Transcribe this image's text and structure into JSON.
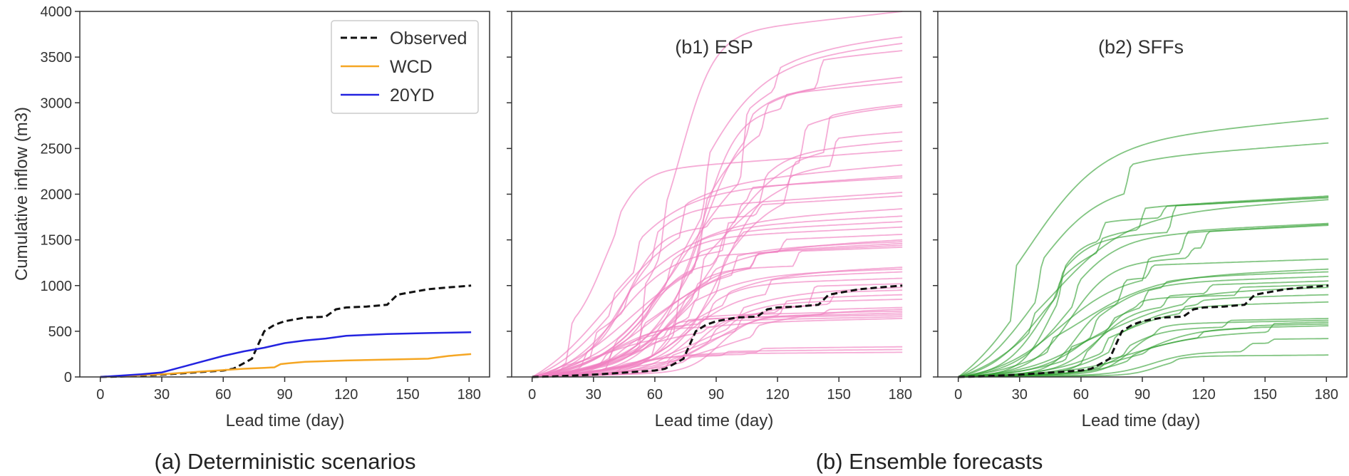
{
  "captions": {
    "a": "(a) Deterministic scenarios",
    "b": "(b) Ensemble forecasts"
  },
  "colors": {
    "observed": "#111111",
    "wcd": "#f5a623",
    "20yd": "#2323e0",
    "esp": "#f080c0",
    "sffs": "#2e9e2e",
    "axis": "#333333"
  },
  "chart_data": [
    {
      "type": "line",
      "panel": "a",
      "title": "",
      "xlabel": "Lead time (day)",
      "ylabel": "Cumulative inflow (m3)",
      "xlim": [
        -10,
        190
      ],
      "ylim": [
        0,
        4000
      ],
      "xticks": [
        0,
        30,
        60,
        90,
        120,
        150,
        180
      ],
      "yticks": [
        0,
        500,
        1000,
        1500,
        2000,
        2500,
        3000,
        3500,
        4000
      ],
      "legend": {
        "placement": "top-right",
        "entries": [
          "Observed",
          "WCD",
          "20YD"
        ]
      },
      "series": [
        {
          "name": "Observed",
          "style": "dashed",
          "color": "#111111",
          "x": [
            0,
            10,
            20,
            30,
            40,
            50,
            60,
            65,
            70,
            74,
            77,
            80,
            85,
            90,
            100,
            110,
            115,
            120,
            130,
            140,
            145,
            150,
            160,
            170,
            181
          ],
          "y": [
            0,
            5,
            15,
            25,
            40,
            55,
            70,
            90,
            150,
            200,
            350,
            500,
            570,
            610,
            650,
            660,
            740,
            760,
            770,
            790,
            900,
            920,
            960,
            980,
            1000
          ]
        },
        {
          "name": "WCD",
          "style": "solid",
          "color": "#f5a623",
          "x": [
            0,
            10,
            20,
            30,
            40,
            50,
            60,
            70,
            80,
            85,
            88,
            92,
            100,
            120,
            140,
            160,
            165,
            170,
            181
          ],
          "y": [
            0,
            10,
            20,
            30,
            45,
            60,
            75,
            90,
            100,
            105,
            140,
            150,
            165,
            180,
            190,
            200,
            215,
            230,
            250
          ]
        },
        {
          "name": "20YD",
          "style": "solid",
          "color": "#2323e0",
          "x": [
            0,
            10,
            20,
            30,
            40,
            50,
            60,
            70,
            80,
            90,
            100,
            110,
            120,
            140,
            160,
            181
          ],
          "y": [
            0,
            15,
            30,
            50,
            110,
            170,
            230,
            280,
            320,
            370,
            400,
            420,
            450,
            470,
            480,
            490
          ]
        }
      ]
    },
    {
      "type": "line",
      "panel": "b1",
      "title": "(b1) ESP",
      "xlabel": "Lead time (day)",
      "ylabel": "",
      "xlim": [
        -10,
        190
      ],
      "ylim": [
        0,
        4000
      ],
      "xticks": [
        0,
        30,
        60,
        90,
        120,
        150,
        180
      ],
      "ensemble_members": 45,
      "ensemble_color": "#f080c0",
      "ensemble_final_values": [
        4000,
        3720,
        3650,
        3570,
        3280,
        3230,
        2980,
        2960,
        2680,
        2580,
        2480,
        2320,
        2200,
        2180,
        2020,
        1980,
        1840,
        1760,
        1700,
        1640,
        1560,
        1500,
        1480,
        1460,
        1440,
        1420,
        1200,
        1180,
        1150,
        1080,
        1020,
        980,
        950,
        900,
        850,
        760,
        740,
        720,
        700,
        680,
        660,
        640,
        330,
        300,
        270
      ],
      "series": [
        {
          "name": "Observed",
          "style": "dashed",
          "color": "#111111",
          "x": [
            0,
            10,
            20,
            30,
            40,
            50,
            60,
            65,
            70,
            74,
            77,
            80,
            85,
            90,
            100,
            110,
            115,
            120,
            130,
            140,
            145,
            150,
            160,
            170,
            181
          ],
          "y": [
            0,
            5,
            15,
            25,
            40,
            55,
            70,
            90,
            150,
            200,
            350,
            500,
            570,
            610,
            650,
            660,
            740,
            760,
            770,
            790,
            900,
            920,
            960,
            980,
            1000
          ]
        }
      ]
    },
    {
      "type": "line",
      "panel": "b2",
      "title": "(b2) SFFs",
      "xlabel": "Lead time (day)",
      "ylabel": "",
      "xlim": [
        -10,
        190
      ],
      "ylim": [
        0,
        4000
      ],
      "xticks": [
        0,
        30,
        60,
        90,
        120,
        150,
        180
      ],
      "ensemble_members": 25,
      "ensemble_color": "#2e9e2e",
      "ensemble_final_values": [
        2830,
        2560,
        1980,
        1970,
        1960,
        1940,
        1680,
        1670,
        1660,
        1290,
        1180,
        1150,
        1100,
        1050,
        1010,
        980,
        900,
        820,
        640,
        620,
        600,
        580,
        560,
        420,
        240
      ],
      "series": [
        {
          "name": "Observed",
          "style": "dashed",
          "color": "#111111",
          "x": [
            0,
            10,
            20,
            30,
            40,
            50,
            60,
            65,
            70,
            74,
            77,
            80,
            85,
            90,
            100,
            110,
            115,
            120,
            130,
            140,
            145,
            150,
            160,
            170,
            181
          ],
          "y": [
            0,
            5,
            15,
            25,
            40,
            55,
            70,
            90,
            150,
            200,
            350,
            500,
            570,
            610,
            650,
            660,
            740,
            760,
            770,
            790,
            900,
            920,
            960,
            980,
            1000
          ]
        }
      ]
    }
  ]
}
